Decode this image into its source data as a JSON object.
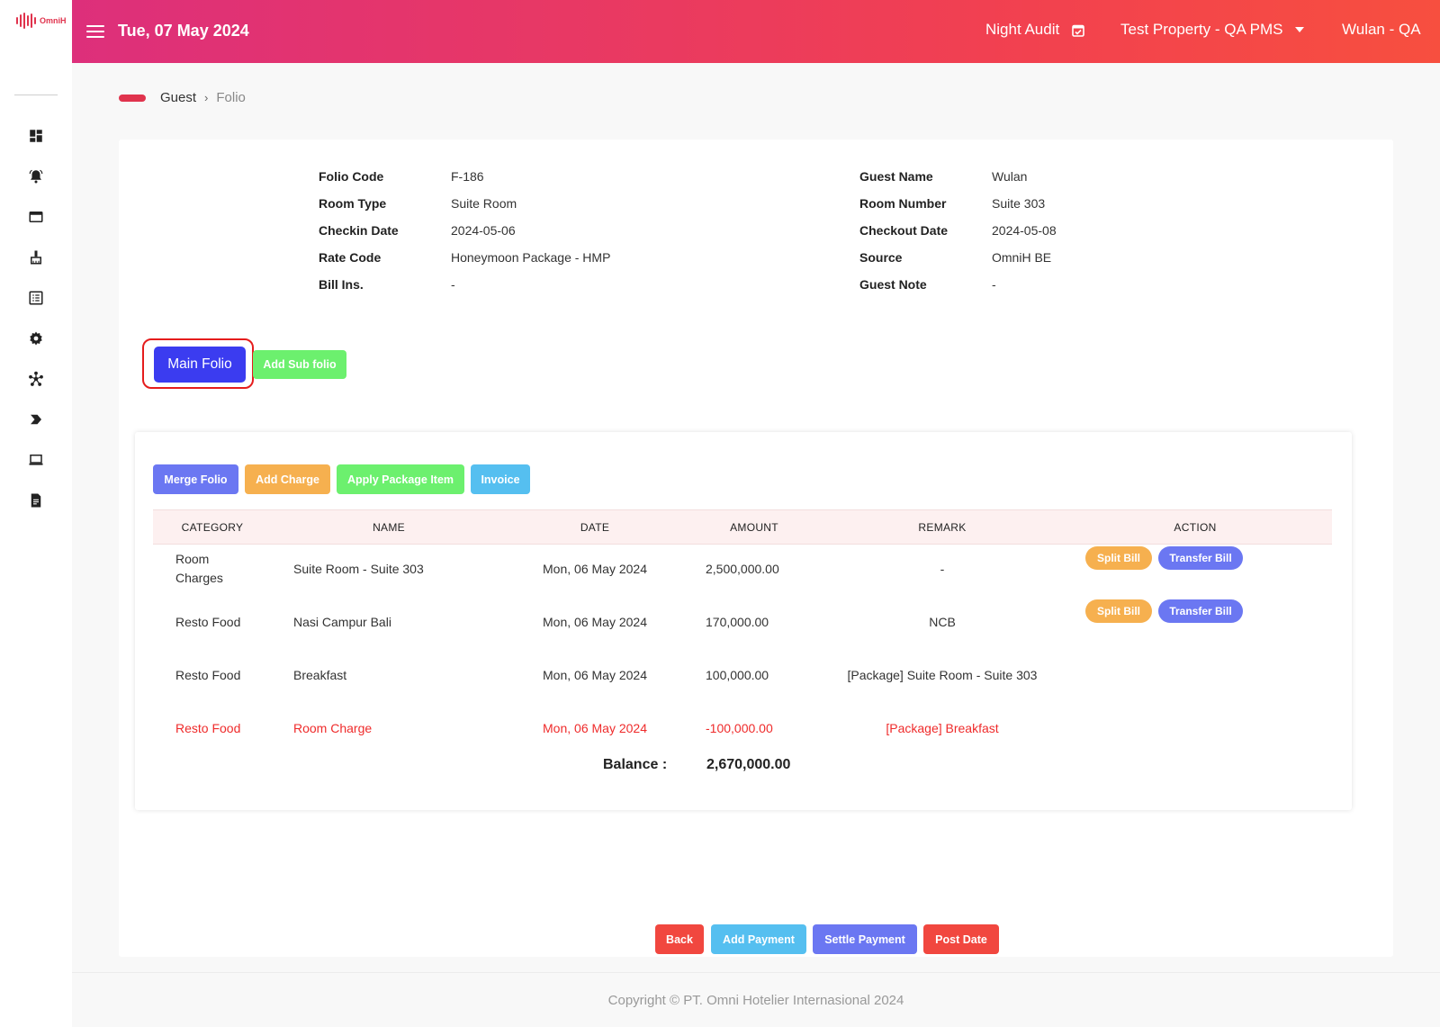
{
  "logo": {
    "text": "OmniH"
  },
  "header": {
    "date": "Tue, 07 May 2024",
    "night_audit": "Night Audit",
    "property": "Test Property - QA PMS",
    "user": "Wulan - QA"
  },
  "sidebar": {
    "icons": [
      "dashboard-icon",
      "bell-icon",
      "window-icon",
      "cleaning-icon",
      "list-icon",
      "gear-icon",
      "network-icon",
      "arrow-icon",
      "laptop-icon",
      "report-icon"
    ]
  },
  "breadcrumb": {
    "parent": "Guest",
    "separator": "›",
    "current": "Folio"
  },
  "folio_info": {
    "left": [
      {
        "label": "Folio Code",
        "value": "F-186"
      },
      {
        "label": "Room Type",
        "value": "Suite Room"
      },
      {
        "label": "Checkin Date",
        "value": "2024-05-06"
      },
      {
        "label": "Rate Code",
        "value": "Honeymoon Package - HMP"
      },
      {
        "label": "Bill Ins.",
        "value": "-"
      }
    ],
    "right": [
      {
        "label": "Guest Name",
        "value": "Wulan"
      },
      {
        "label": "Room Number",
        "value": "Suite 303"
      },
      {
        "label": "Checkout Date",
        "value": "2024-05-08"
      },
      {
        "label": "Source",
        "value": "OmniH BE"
      },
      {
        "label": "Guest Note",
        "value": "-"
      }
    ]
  },
  "folio_tabs": {
    "main": "Main Folio",
    "add_sub": "Add Sub folio"
  },
  "toolbar": {
    "merge": "Merge Folio",
    "add_charge": "Add Charge",
    "apply_package": "Apply Package Item",
    "invoice": "Invoice"
  },
  "table": {
    "headers": [
      "CATEGORY",
      "NAME",
      "DATE",
      "AMOUNT",
      "REMARK",
      "ACTION"
    ],
    "rows": [
      {
        "category": "Room Charges",
        "name": "Suite Room - Suite 303",
        "date": "Mon, 06 May 2024",
        "amount": "2,500,000.00",
        "remark": "-"
      },
      {
        "category": "Resto Food",
        "name": "Nasi Campur Bali",
        "date": "Mon, 06 May 2024",
        "amount": "170,000.00",
        "remark": "NCB"
      },
      {
        "category": "Resto Food",
        "name": "Breakfast",
        "date": "Mon, 06 May 2024",
        "amount": "100,000.00",
        "remark": "[Package] Suite Room - Suite 303"
      },
      {
        "category": "Resto Food",
        "name": "Room Charge",
        "date": "Mon, 06 May 2024",
        "amount": "-100,000.00",
        "remark": "[Package] Breakfast"
      }
    ],
    "actions": {
      "split": "Split Bill",
      "transfer": "Transfer Bill"
    }
  },
  "balance": {
    "label": "Balance :",
    "value": "2,670,000.00"
  },
  "bottom_actions": {
    "back": "Back",
    "add_payment": "Add Payment",
    "settle_payment": "Settle Payment",
    "post_date": "Post Date"
  },
  "footer": {
    "copyright": "Copyright © PT. Omni Hotelier Internasional 2024"
  },
  "colors": {
    "header_gradient_start": "#dd2f7b",
    "header_gradient_end": "#f74f3f",
    "main_folio": "#3b3cf0",
    "negative_row": "#ef2b2b"
  }
}
